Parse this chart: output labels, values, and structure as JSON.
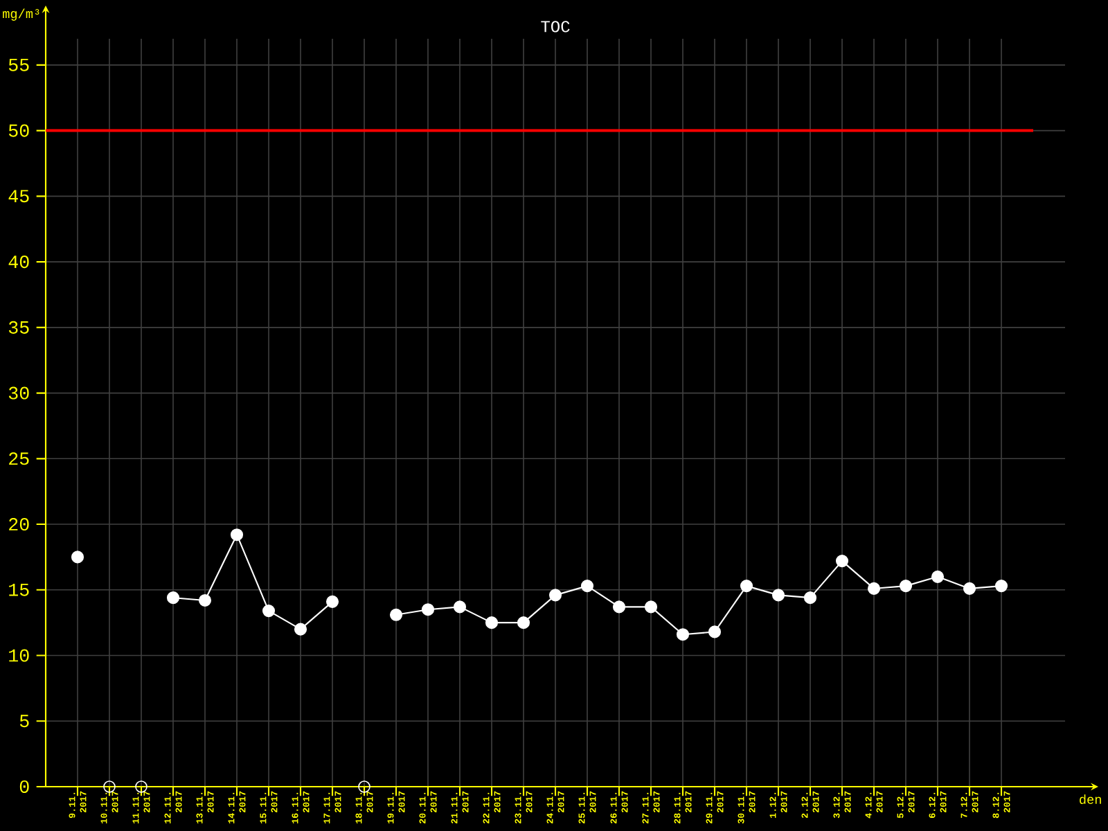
{
  "chart_data": {
    "type": "line",
    "title": "TOC",
    "xlabel": "den",
    "ylabel": "mg/m³",
    "categories": [
      "9.11. 2017",
      "10.11. 2017",
      "11.11. 2017",
      "12.11. 2017",
      "13.11. 2017",
      "14.11. 2017",
      "15.11. 2017",
      "16.11. 2017",
      "17.11. 2017",
      "18.11. 2017",
      "19.11. 2017",
      "20.11. 2017",
      "21.11. 2017",
      "22.11. 2017",
      "23.11. 2017",
      "24.11. 2017",
      "25.11. 2017",
      "26.11. 2017",
      "27.11. 2017",
      "28.11. 2017",
      "29.11. 2017",
      "30.11. 2017",
      "1.12. 2017",
      "2.12. 2017",
      "3.12. 2017",
      "4.12. 2017",
      "5.12. 2017",
      "6.12. 2017",
      "7.12. 2017",
      "8.12. 2017"
    ],
    "series": [
      {
        "color": "#ffffff",
        "values": [
          17.5,
          null,
          null,
          14.4,
          14.2,
          19.2,
          13.4,
          12.0,
          14.1,
          null,
          13.1,
          13.5,
          13.7,
          12.5,
          12.5,
          14.6,
          15.3,
          13.7,
          13.7,
          11.6,
          11.8,
          15.3,
          14.6,
          14.4,
          17.2,
          15.1,
          15.3,
          16.0,
          15.1,
          15.3
        ]
      },
      {
        "type": "scatter",
        "color": "#ffffff",
        "values": [
          null,
          0,
          0,
          null,
          null,
          null,
          null,
          null,
          null,
          0,
          null,
          null,
          null,
          null,
          null,
          null,
          null,
          null,
          null,
          null,
          null,
          null,
          null,
          null,
          null,
          null,
          null,
          null,
          null,
          null
        ]
      }
    ],
    "ylim": [
      0,
      57
    ],
    "yticks": [
      0,
      5,
      10,
      15,
      20,
      25,
      30,
      35,
      40,
      45,
      50,
      55
    ],
    "ref_lines": [
      {
        "axis": "y",
        "value": 50,
        "color": "#ff0000"
      }
    ],
    "grid": true,
    "marker": "circle",
    "line_style": "solid"
  }
}
